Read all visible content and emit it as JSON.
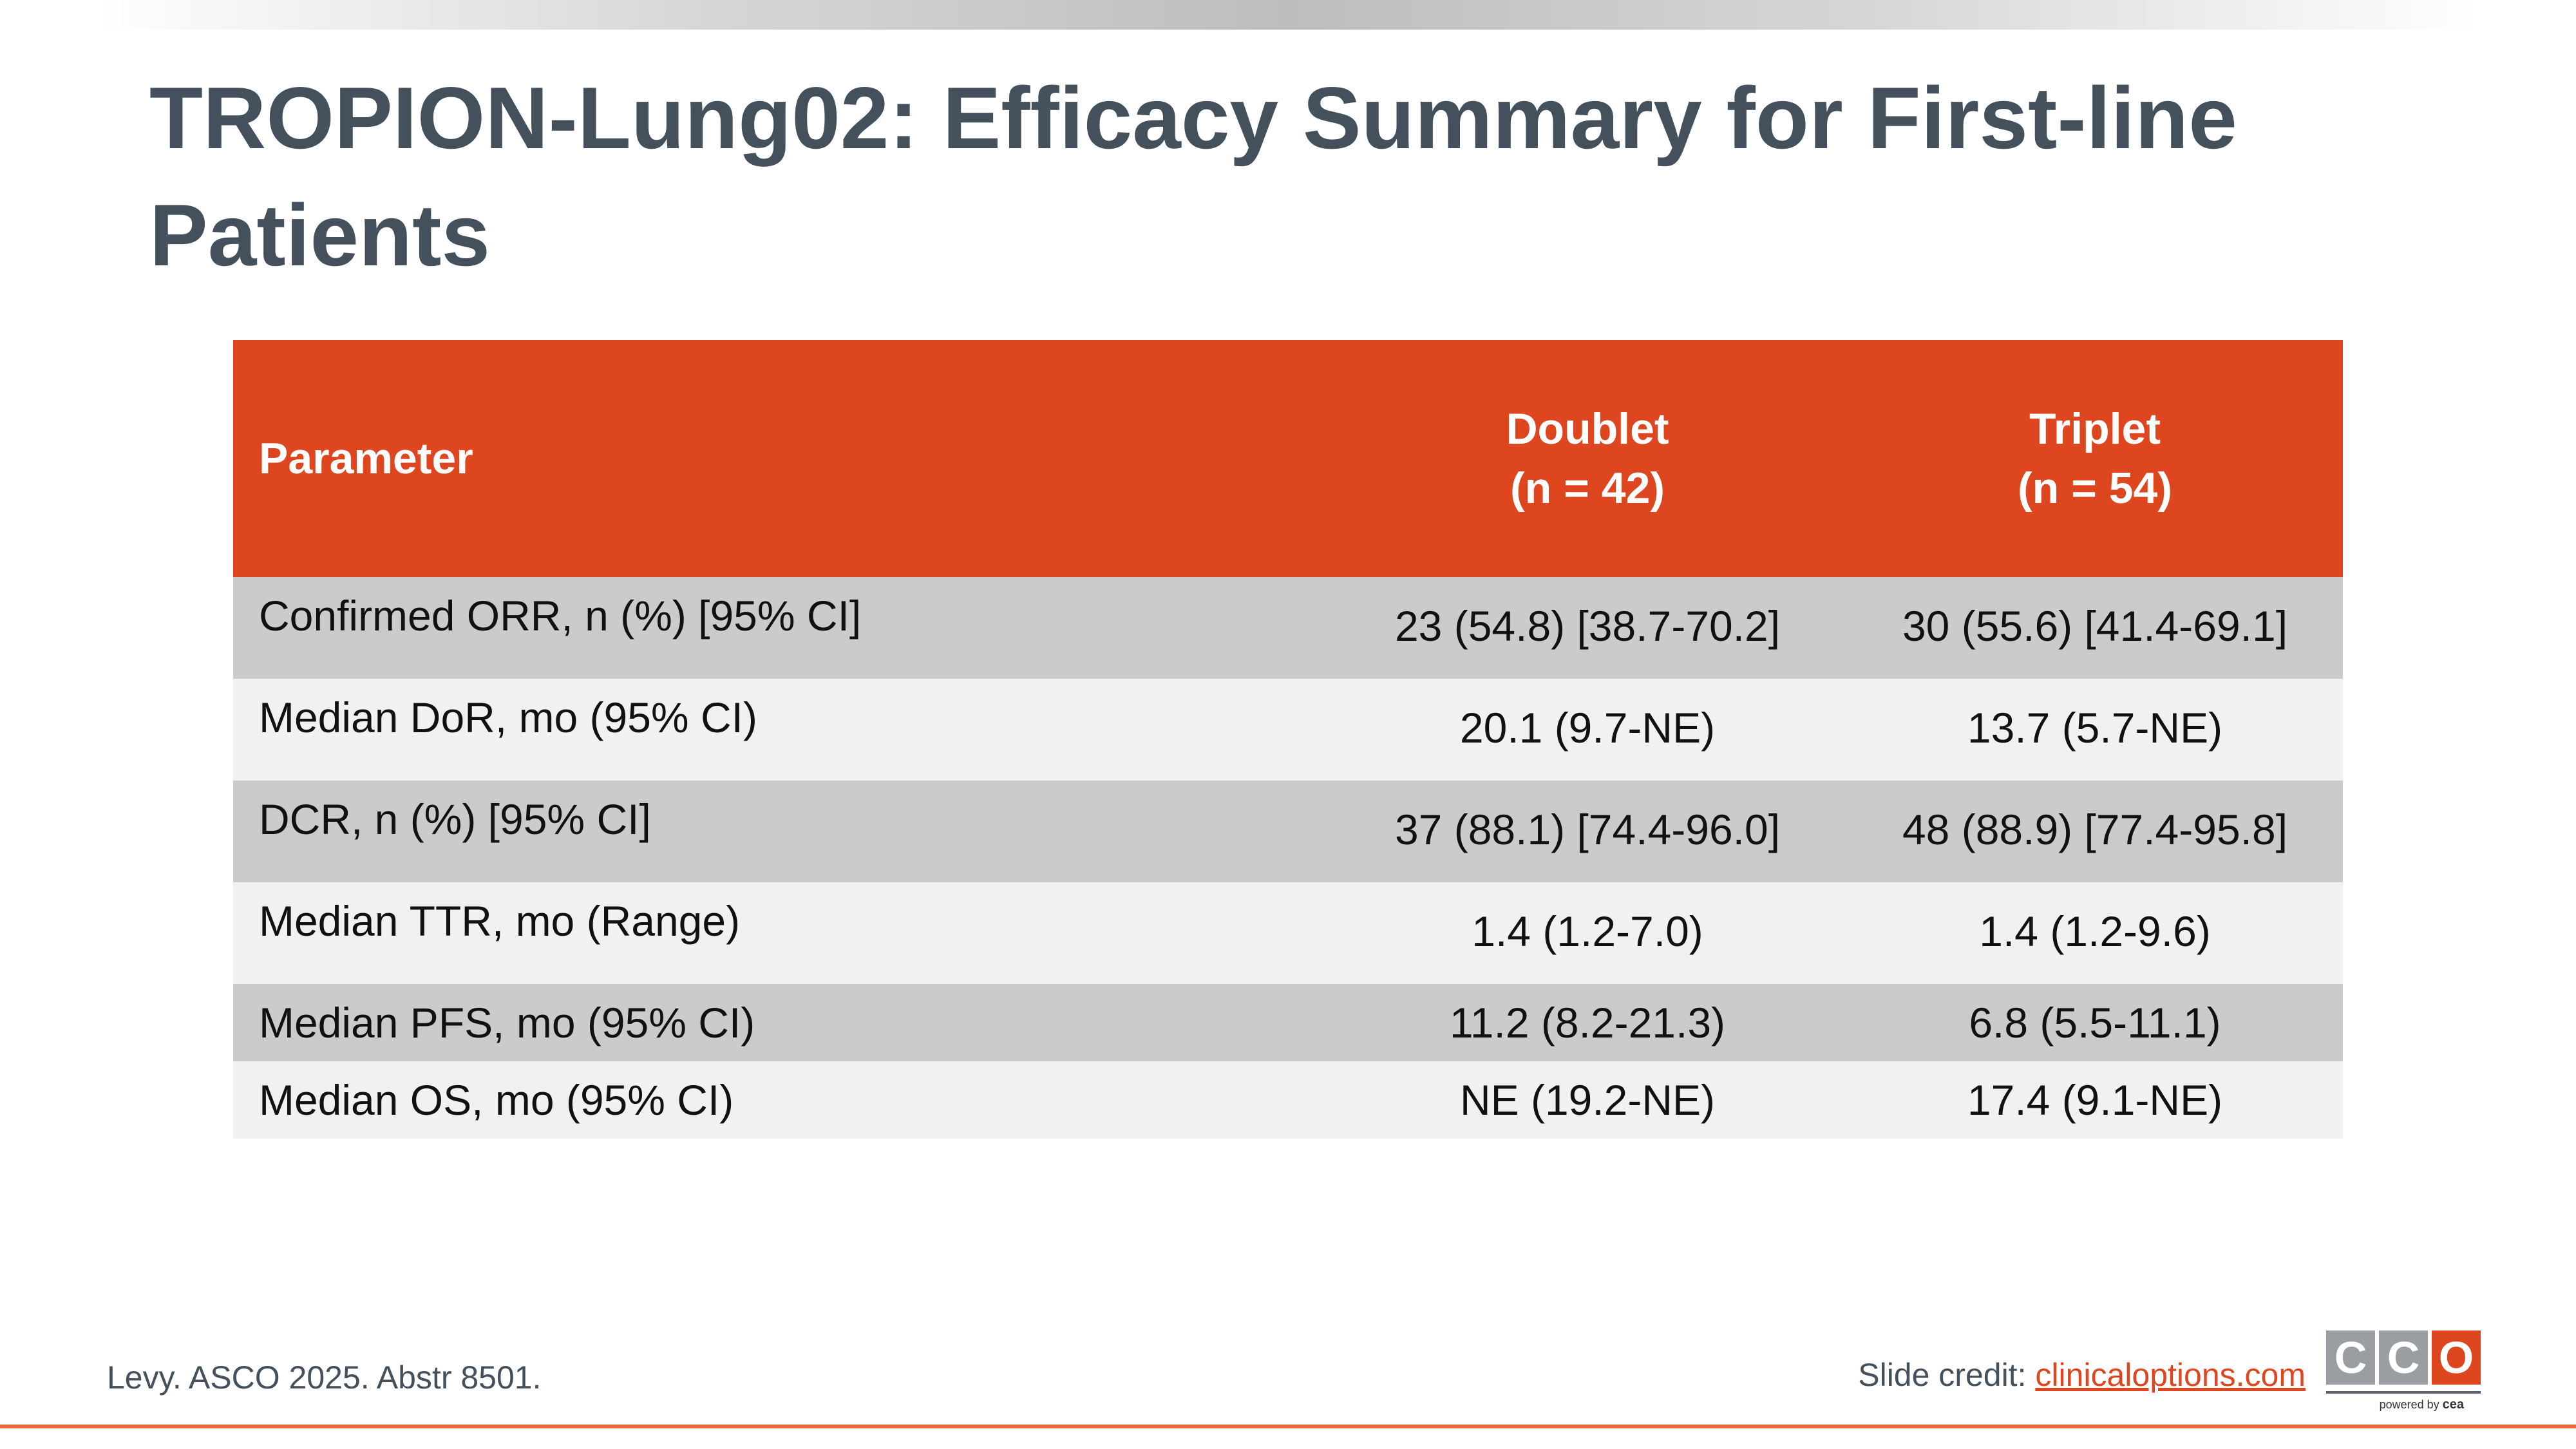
{
  "title": "TROPION-Lung02: Efficacy Summary for First-line Patients",
  "table": {
    "headers": {
      "parameter": "Parameter",
      "doublet": "Doublet",
      "doublet_n": "(n = 42)",
      "triplet": "Triplet",
      "triplet_n": "(n = 54)"
    },
    "rows": [
      {
        "parameter": "Confirmed ORR, n (%) [95% CI]",
        "doublet": "23 (54.8) [38.7-70.2]",
        "triplet": "30 (55.6) [41.4-69.1]"
      },
      {
        "parameter": "Median DoR, mo (95% CI)",
        "doublet": "20.1 (9.7-NE)",
        "triplet": "13.7 (5.7-NE)"
      },
      {
        "parameter": "DCR, n (%) [95% CI]",
        "doublet": "37 (88.1) [74.4-96.0]",
        "triplet": "48 (88.9) [77.4-95.8]"
      },
      {
        "parameter": "Median TTR, mo (Range)",
        "doublet": "1.4 (1.2-7.0)",
        "triplet": "1.4 (1.2-9.6)"
      },
      {
        "parameter": "Median PFS, mo (95% CI)",
        "doublet": "11.2 (8.2-21.3)",
        "triplet": "6.8 (5.5-11.1)"
      },
      {
        "parameter": "Median OS, mo (95% CI)",
        "doublet": "NE (19.2-NE)",
        "triplet": "17.4 (9.1-NE)"
      }
    ]
  },
  "footer": {
    "citation": "Levy. ASCO 2025. Abstr 8501.",
    "credit_label": "Slide credit: ",
    "credit_link": "clinicaloptions.com",
    "logo_letters": [
      "C",
      "C",
      "O"
    ],
    "logo_sub_prefix": "powered by ",
    "logo_sub_brand": "cea"
  },
  "colors": {
    "accent": "#de461f",
    "title": "#44505b",
    "row_dark": "#cbcbcd",
    "row_light": "#f1f1f1"
  }
}
